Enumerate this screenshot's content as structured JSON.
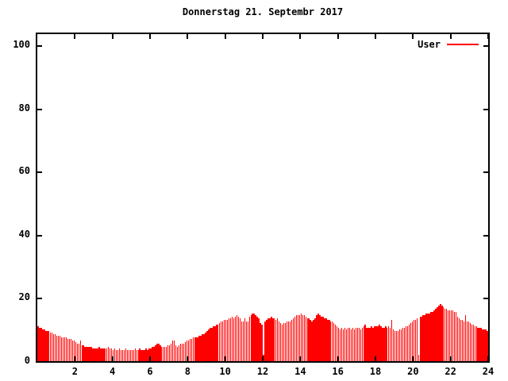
{
  "title": "Donnerstag 21. Septembr 2017",
  "legend": {
    "label": "User"
  },
  "colors": {
    "bar": "#ff0000",
    "axis": "#000000",
    "text": "#000000",
    "background": "#ffffff"
  },
  "chart_data": {
    "type": "bar",
    "title": "Donnerstag 21. Septembr 2017",
    "xlabel": "",
    "ylabel": "",
    "x_unit": "hour of day",
    "interval_minutes": 5,
    "xlim": [
      0,
      24
    ],
    "ylim": [
      0,
      100
    ],
    "xticks": [
      2,
      4,
      6,
      8,
      10,
      12,
      14,
      16,
      18,
      20,
      22,
      24
    ],
    "yticks": [
      0,
      20,
      40,
      60,
      80,
      100
    ],
    "grid": false,
    "legend_position": "top-right",
    "series": [
      {
        "name": "User",
        "color": "#ff0000",
        "values": [
          11,
          10.5,
          10.5,
          10,
          10,
          9.5,
          9.5,
          9.5,
          9,
          9,
          8.5,
          8.5,
          8,
          8,
          8,
          7.5,
          7.5,
          7.5,
          7.5,
          7,
          7,
          7,
          6.5,
          6.5,
          6,
          5.5,
          5.5,
          6.5,
          5,
          5,
          4.5,
          4.5,
          4.5,
          4.5,
          4.5,
          4,
          4,
          4,
          4,
          4.5,
          4,
          4,
          4,
          4,
          4,
          4.5,
          4,
          4,
          3.5,
          4,
          3.5,
          3.5,
          4,
          3.5,
          3.5,
          3.5,
          4,
          3.5,
          3.5,
          3.5,
          3.5,
          3.5,
          4,
          3.5,
          3.5,
          4,
          3.5,
          3.5,
          3.5,
          4,
          3.5,
          4,
          4,
          4.5,
          4.5,
          5,
          5.5,
          5.5,
          5,
          4.5,
          4.5,
          4.5,
          4.5,
          5,
          5,
          5.5,
          6.5,
          6.5,
          5,
          4.5,
          5,
          5.5,
          5.5,
          5.5,
          6,
          6.5,
          6.5,
          7,
          7,
          7.5,
          7.5,
          7.5,
          7.5,
          8,
          8,
          8.5,
          8.5,
          9,
          9.5,
          10,
          10.5,
          10.5,
          11,
          11,
          11.5,
          11.5,
          12,
          12.5,
          12.5,
          13,
          13,
          13,
          13.5,
          13.5,
          14,
          13.5,
          14,
          14.5,
          14,
          13.5,
          12.5,
          12.5,
          13.5,
          12.5,
          12.5,
          14,
          14.5,
          15,
          15,
          14.5,
          14,
          13.5,
          12,
          11.5,
          2,
          12.5,
          13,
          13.5,
          13.5,
          14,
          13.5,
          13.5,
          13,
          13.5,
          12.5,
          12,
          11.5,
          12,
          12,
          12.5,
          12.5,
          12.5,
          13,
          13.5,
          14,
          14.5,
          14.5,
          14.5,
          15,
          14.5,
          14.5,
          14,
          13.5,
          13.5,
          13,
          12.5,
          13,
          13.5,
          14.5,
          15,
          14.5,
          14,
          14,
          13.5,
          13.5,
          13,
          13,
          12.5,
          12.5,
          12,
          11.5,
          11,
          10.5,
          10,
          10.5,
          10,
          10.5,
          10,
          10.5,
          10.5,
          10,
          10.5,
          10,
          10.5,
          10.5,
          10.5,
          10,
          10.5,
          11,
          11.5,
          10.5,
          10.5,
          10.5,
          11,
          10.5,
          11,
          11,
          11,
          11.5,
          11,
          10.5,
          10.5,
          11,
          10.5,
          11,
          10.5,
          13,
          10,
          9.5,
          9.5,
          9.5,
          10,
          10,
          10.5,
          10.5,
          11,
          11,
          11.5,
          12,
          12.5,
          13,
          13,
          13.5,
          2,
          14,
          14,
          14.5,
          14.5,
          15,
          15,
          15,
          15.5,
          15.5,
          16,
          16.5,
          17,
          17.5,
          18,
          17.5,
          17,
          16.5,
          16.5,
          16,
          16,
          16,
          16,
          15.5,
          15.5,
          14,
          13.5,
          13,
          13,
          12.5,
          14.5,
          12.5,
          12.5,
          12,
          11.5,
          11.5,
          11,
          11,
          10.5,
          10.5,
          10.5,
          10,
          10,
          10,
          9.5
        ]
      }
    ]
  }
}
